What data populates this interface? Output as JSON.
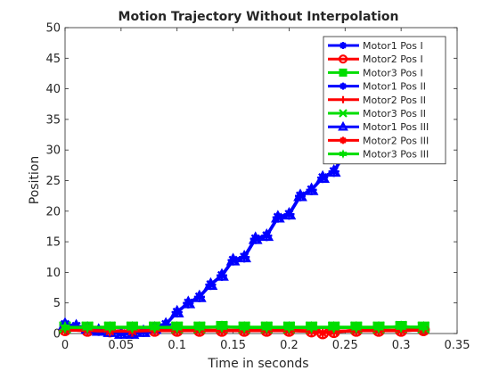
{
  "chart_data": {
    "type": "line",
    "title": "Motion  Trajectory Without Interpolation",
    "xlabel": "Time in seconds",
    "ylabel": "Position",
    "xlim": [
      0,
      0.35
    ],
    "ylim": [
      0,
      50
    ],
    "xticks": [
      0,
      0.05,
      0.1,
      0.15,
      0.2,
      0.25,
      0.3,
      0.35
    ],
    "yticks": [
      0,
      5,
      10,
      15,
      20,
      25,
      30,
      35,
      40,
      45,
      50
    ],
    "xtick_labels": [
      "0",
      "0.05",
      "0.1",
      "0.15",
      "0.2",
      "0.25",
      "0.3",
      "0.35"
    ],
    "ytick_labels": [
      "0",
      "5",
      "10",
      "15",
      "20",
      "25",
      "30",
      "35",
      "40",
      "45",
      "50"
    ],
    "grid": false,
    "legend_position": "top-right",
    "series": [
      {
        "name": "Motor1 Pos I",
        "color": "#0000ff",
        "marker": "star",
        "x": [
          0,
          0.01,
          0.02,
          0.03,
          0.04,
          0.05,
          0.06,
          0.07,
          0.08,
          0.09,
          0.1,
          0.11,
          0.12,
          0.13,
          0.14,
          0.15,
          0.16,
          0.17,
          0.18,
          0.19,
          0.2,
          0.21,
          0.22,
          0.23,
          0.24,
          0.25
        ],
        "y": [
          1.5,
          1.2,
          0.8,
          0.5,
          0.3,
          0,
          0,
          0.3,
          0.8,
          1.5,
          3.5,
          5.0,
          6.0,
          8.0,
          9.5,
          12.0,
          12.5,
          15.5,
          16.0,
          19.0,
          19.5,
          22.5,
          23.5,
          25.5,
          26.5,
          29.5
        ]
      },
      {
        "name": "Motor2 Pos I",
        "color": "#ff0000",
        "marker": "circle",
        "x": [
          0,
          0.02,
          0.04,
          0.06,
          0.08,
          0.1,
          0.12,
          0.14,
          0.16,
          0.18,
          0.2,
          0.22,
          0.23,
          0.24,
          0.26,
          0.28,
          0.3,
          0.32
        ],
        "y": [
          0.6,
          0.5,
          0.4,
          0.4,
          0.5,
          0.5,
          0.5,
          0.5,
          0.5,
          0.5,
          0.5,
          0.4,
          0.1,
          0.3,
          0.5,
          0.5,
          0.5,
          0.6
        ]
      },
      {
        "name": "Motor3 Pos I",
        "color": "#00dd00",
        "marker": "square",
        "x": [
          0,
          0.02,
          0.04,
          0.06,
          0.08,
          0.1,
          0.12,
          0.14,
          0.16,
          0.18,
          0.2,
          0.22,
          0.24,
          0.26,
          0.28,
          0.3,
          0.32
        ],
        "y": [
          1.0,
          1.0,
          1.0,
          1.0,
          1.0,
          1.0,
          1.0,
          1.1,
          1.0,
          1.0,
          1.0,
          1.0,
          1.0,
          1.0,
          1.0,
          1.1,
          1.0
        ]
      },
      {
        "name": "Motor1 Pos II",
        "color": "#0000ff",
        "marker": "asterisk",
        "x": [
          0,
          0.01,
          0.02,
          0.03,
          0.04,
          0.05,
          0.06,
          0.07,
          0.08,
          0.09,
          0.1,
          0.11,
          0.12,
          0.13,
          0.14,
          0.15,
          0.16,
          0.17,
          0.18,
          0.19,
          0.2,
          0.21,
          0.22,
          0.23,
          0.24,
          0.25
        ],
        "y": [
          1.5,
          1.2,
          0.8,
          0.5,
          0.3,
          0,
          0,
          0.3,
          0.8,
          1.5,
          3.5,
          5.0,
          6.0,
          8.0,
          9.5,
          12.0,
          12.5,
          15.5,
          16.0,
          19.0,
          19.5,
          22.5,
          23.5,
          25.5,
          26.5,
          29.5
        ]
      },
      {
        "name": "Motor2 Pos II",
        "color": "#ff0000",
        "marker": "plus",
        "x": [
          0,
          0.02,
          0.04,
          0.06,
          0.08,
          0.1,
          0.12,
          0.14,
          0.16,
          0.18,
          0.2,
          0.22,
          0.23,
          0.24,
          0.26,
          0.28,
          0.3,
          0.32
        ],
        "y": [
          0.6,
          0.5,
          0.4,
          0.4,
          0.5,
          0.5,
          0.5,
          0.5,
          0.5,
          0.5,
          0.5,
          0.4,
          0.1,
          0.3,
          0.5,
          0.5,
          0.5,
          0.6
        ]
      },
      {
        "name": "Motor3 Pos II",
        "color": "#00dd00",
        "marker": "x",
        "x": [
          0,
          0.02,
          0.04,
          0.06,
          0.08,
          0.1,
          0.12,
          0.14,
          0.16,
          0.18,
          0.2,
          0.22,
          0.24,
          0.26,
          0.28,
          0.3,
          0.32
        ],
        "y": [
          1.0,
          1.0,
          1.0,
          1.0,
          1.0,
          1.0,
          1.0,
          1.1,
          1.0,
          1.0,
          1.0,
          1.0,
          1.0,
          1.0,
          1.0,
          1.1,
          1.0
        ]
      },
      {
        "name": "Motor1 Pos III",
        "color": "#0000ff",
        "marker": "triangle",
        "x": [
          0,
          0.01,
          0.02,
          0.03,
          0.04,
          0.05,
          0.06,
          0.07,
          0.08,
          0.09,
          0.1,
          0.11,
          0.12,
          0.13,
          0.14,
          0.15,
          0.16,
          0.17,
          0.18,
          0.19,
          0.2,
          0.21,
          0.22,
          0.23,
          0.24,
          0.25
        ],
        "y": [
          1.5,
          1.2,
          0.8,
          0.5,
          0.3,
          0,
          0,
          0.3,
          0.8,
          1.5,
          3.5,
          5.0,
          6.0,
          8.0,
          9.5,
          12.0,
          12.5,
          15.5,
          16.0,
          19.0,
          19.5,
          22.5,
          23.5,
          25.5,
          26.5,
          29.5
        ]
      },
      {
        "name": "Motor2 Pos III",
        "color": "#ff0000",
        "marker": "star",
        "x": [
          0,
          0.02,
          0.04,
          0.06,
          0.08,
          0.1,
          0.12,
          0.14,
          0.16,
          0.18,
          0.2,
          0.22,
          0.23,
          0.24,
          0.26,
          0.28,
          0.3,
          0.32
        ],
        "y": [
          0.6,
          0.5,
          0.4,
          0.4,
          0.5,
          0.5,
          0.5,
          0.5,
          0.5,
          0.5,
          0.5,
          0.4,
          0.1,
          0.3,
          0.5,
          0.5,
          0.5,
          0.6
        ]
      },
      {
        "name": "Motor3 Pos III",
        "color": "#00dd00",
        "marker": "hexagram",
        "x": [
          0,
          0.02,
          0.04,
          0.06,
          0.08,
          0.1,
          0.12,
          0.14,
          0.16,
          0.18,
          0.2,
          0.22,
          0.24,
          0.26,
          0.28,
          0.3,
          0.32
        ],
        "y": [
          1.0,
          1.0,
          1.0,
          1.0,
          1.0,
          1.0,
          1.0,
          1.1,
          1.0,
          1.0,
          1.0,
          1.0,
          1.0,
          1.0,
          1.0,
          1.1,
          1.0
        ]
      }
    ]
  }
}
